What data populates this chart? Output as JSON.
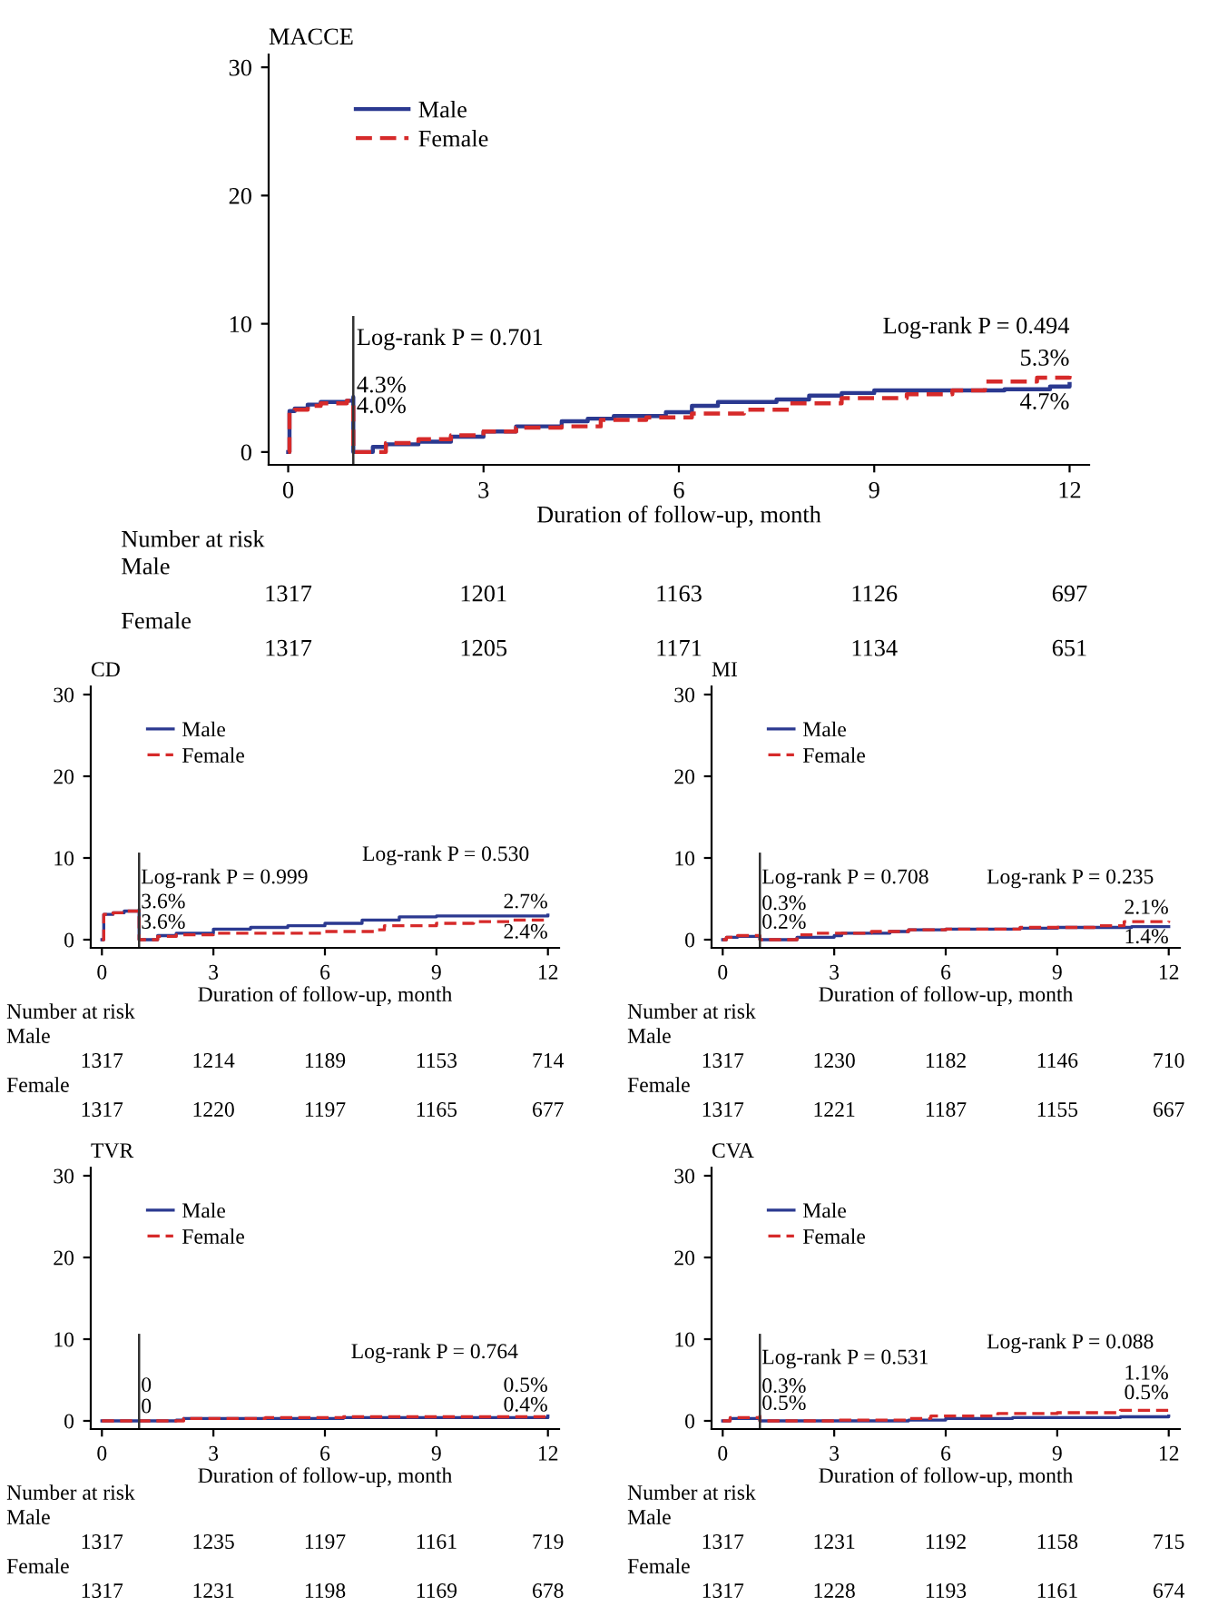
{
  "chart_data": [
    {
      "type": "step",
      "title": "MACCE",
      "xlabel": "Duration of follow-up, month",
      "xlim": [
        -0.3,
        12.3
      ],
      "ylim": [
        -1,
        31
      ],
      "xticks": [
        0,
        3,
        6,
        9,
        12
      ],
      "yticks": [
        0,
        10,
        20,
        30
      ],
      "legend": "top left",
      "grid": false,
      "series": [
        {
          "name": "Male",
          "color": "#2b3990",
          "line_style": "solid",
          "x": [
            0,
            0.02,
            0.1,
            0.3,
            0.5,
            0.9,
            1.0,
            1.0,
            1.3,
            1.5,
            2.0,
            2.5,
            3,
            3.5,
            4.2,
            4.6,
            5,
            5.8,
            6.2,
            6.6,
            7.5,
            8,
            8.5,
            9,
            10,
            11,
            11.7,
            12
          ],
          "values": [
            0,
            3.2,
            3.4,
            3.7,
            3.9,
            4.0,
            4.3,
            0,
            0.4,
            0.6,
            0.8,
            1.2,
            1.6,
            2.0,
            2.4,
            2.6,
            2.8,
            3.1,
            3.6,
            3.9,
            4.1,
            4.4,
            4.6,
            4.8,
            4.8,
            4.9,
            5.1,
            5.3
          ]
        },
        {
          "name": "Female",
          "color": "#d62a2a",
          "line_style": "dashed",
          "x": [
            0,
            0.02,
            0.1,
            0.3,
            0.5,
            0.9,
            1.0,
            1.0,
            1.5,
            2.0,
            2.5,
            3,
            3.5,
            4.2,
            4.8,
            5.5,
            6.2,
            7,
            7.7,
            8.5,
            9.5,
            10.2,
            10.7,
            11.5,
            12
          ],
          "values": [
            0,
            3.1,
            3.3,
            3.6,
            3.8,
            4.0,
            4.0,
            0,
            0.7,
            1.0,
            1.3,
            1.6,
            1.9,
            2.0,
            2.5,
            2.7,
            3.0,
            3.3,
            3.8,
            4.2,
            4.5,
            4.8,
            5.5,
            5.8,
            6.1
          ]
        }
      ],
      "ref_lines": [
        {
          "axis": "x",
          "value": 1,
          "color": "#333333"
        }
      ],
      "annotations": [
        "Log-rank P = 0.701",
        "4.3%",
        "4.0%",
        "Log-rank P = 0.494",
        "5.3%",
        "4.7%",
        "Number at risk",
        "Male",
        "1317",
        "1201",
        "1163",
        "1126",
        "697",
        "Female",
        "1317",
        "1205",
        "1171",
        "1134",
        "651"
      ]
    },
    {
      "type": "step",
      "title": "CD",
      "xlabel": "Duration of follow-up, month",
      "xlim": [
        -0.3,
        12.3
      ],
      "ylim": [
        -1,
        31
      ],
      "xticks": [
        0,
        3,
        6,
        9,
        12
      ],
      "yticks": [
        0,
        10,
        20,
        30
      ],
      "legend": "top left",
      "grid": false,
      "series": [
        {
          "name": "Male",
          "color": "#2b3990",
          "line_style": "solid",
          "x": [
            0,
            0.05,
            0.3,
            0.6,
            1.0,
            1.0,
            1.5,
            2,
            3,
            4,
            5,
            6,
            7,
            8,
            9,
            10,
            11,
            12
          ],
          "values": [
            0,
            3.1,
            3.3,
            3.5,
            3.7,
            0,
            0.5,
            0.8,
            1.3,
            1.5,
            1.7,
            2.0,
            2.4,
            2.8,
            2.9,
            2.9,
            2.9,
            3.0
          ]
        },
        {
          "name": "Female",
          "color": "#d62a2a",
          "line_style": "dashed",
          "x": [
            0,
            0.05,
            0.3,
            0.6,
            1.0,
            1.0,
            1.5,
            2,
            3,
            4,
            5,
            6,
            7.4,
            7.6,
            9,
            10,
            11,
            12
          ],
          "values": [
            0,
            3.1,
            3.3,
            3.5,
            3.6,
            0,
            0.4,
            0.6,
            0.8,
            0.8,
            0.8,
            1.0,
            1.2,
            1.7,
            2.0,
            2.2,
            2.4,
            2.6
          ]
        }
      ],
      "ref_lines": [
        {
          "axis": "x",
          "value": 1,
          "color": "#333333"
        }
      ],
      "annotations": [
        "Log-rank P = 0.999",
        "3.6%",
        "3.6%",
        "Log-rank P = 0.530",
        "2.7%",
        "2.4%",
        "Number at risk",
        "Male",
        "1317",
        "1214",
        "1189",
        "1153",
        "714",
        "Female",
        "1317",
        "1220",
        "1197",
        "1165",
        "677"
      ]
    },
    {
      "type": "step",
      "title": "MI",
      "xlabel": "Duration of follow-up, month",
      "xlim": [
        -0.3,
        12.3
      ],
      "ylim": [
        -1,
        31
      ],
      "xticks": [
        0,
        3,
        6,
        9,
        12
      ],
      "yticks": [
        0,
        10,
        20,
        30
      ],
      "legend": "top left",
      "grid": false,
      "series": [
        {
          "name": "Male",
          "color": "#2b3990",
          "line_style": "solid",
          "x": [
            0,
            0.1,
            0.4,
            1.0,
            1.0,
            2,
            3,
            3.2,
            4.5,
            5,
            6,
            8,
            9,
            11,
            12
          ],
          "values": [
            0,
            0.3,
            0.4,
            0.4,
            0,
            0.3,
            0.5,
            0.8,
            1.0,
            1.2,
            1.3,
            1.4,
            1.5,
            1.6,
            1.6
          ]
        },
        {
          "name": "Female",
          "color": "#d62a2a",
          "line_style": "dashed",
          "x": [
            0,
            0.1,
            0.4,
            1.0,
            1.0,
            2,
            2.5,
            4,
            5,
            6,
            8,
            10,
            10.8,
            12
          ],
          "values": [
            0,
            0.3,
            0.5,
            0.5,
            0,
            0.6,
            0.8,
            1.0,
            1.2,
            1.3,
            1.5,
            1.7,
            2.2,
            2.3
          ]
        }
      ],
      "ref_lines": [
        {
          "axis": "x",
          "value": 1,
          "color": "#333333"
        }
      ],
      "annotations": [
        "Log-rank P = 0.708",
        "0.3%",
        "0.2%",
        "Log-rank P = 0.235",
        "2.1%",
        "1.4%",
        "Number at risk",
        "Male",
        "1317",
        "1230",
        "1182",
        "1146",
        "710",
        "Female",
        "1317",
        "1221",
        "1187",
        "1155",
        "667"
      ]
    },
    {
      "type": "step",
      "title": "TVR",
      "xlabel": "Duration of follow-up, month",
      "xlim": [
        -0.3,
        12.3
      ],
      "ylim": [
        -1,
        31
      ],
      "xticks": [
        0,
        3,
        6,
        9,
        12
      ],
      "yticks": [
        0,
        10,
        20,
        30
      ],
      "legend": "top left",
      "grid": false,
      "series": [
        {
          "name": "Male",
          "color": "#2b3990",
          "line_style": "solid",
          "x": [
            0,
            2,
            2.2,
            6.5,
            12
          ],
          "values": [
            0,
            0.1,
            0.3,
            0.4,
            0.6
          ]
        },
        {
          "name": "Female",
          "color": "#d62a2a",
          "line_style": "dashed",
          "x": [
            0,
            2.2,
            4.4,
            6.5,
            12
          ],
          "values": [
            0,
            0.3,
            0.4,
            0.5,
            0.6
          ]
        }
      ],
      "ref_lines": [
        {
          "axis": "x",
          "value": 1,
          "color": "#333333"
        }
      ],
      "annotations": [
        "0",
        "0",
        "Log-rank P = 0.764",
        "0.5%",
        "0.4%",
        "Number at risk",
        "Male",
        "1317",
        "1235",
        "1197",
        "1161",
        "719",
        "Female",
        "1317",
        "1231",
        "1198",
        "1169",
        "678"
      ]
    },
    {
      "type": "step",
      "title": "CVA",
      "xlabel": "Duration of follow-up, month",
      "xlim": [
        -0.3,
        12.3
      ],
      "ylim": [
        -1,
        31
      ],
      "xticks": [
        0,
        3,
        6,
        9,
        12
      ],
      "yticks": [
        0,
        10,
        20,
        30
      ],
      "legend": "top left",
      "grid": false,
      "series": [
        {
          "name": "Male",
          "color": "#2b3990",
          "line_style": "solid",
          "x": [
            0,
            0.2,
            1.0,
            1.0,
            3,
            5,
            6,
            7.8,
            10.7,
            12
          ],
          "values": [
            0,
            0.3,
            0.4,
            0,
            0,
            0.1,
            0.3,
            0.4,
            0.5,
            0.6
          ]
        },
        {
          "name": "Female",
          "color": "#d62a2a",
          "line_style": "dashed",
          "x": [
            0,
            0.2,
            1.0,
            1.0,
            3,
            5,
            5.6,
            7.4,
            9,
            10.7,
            12
          ],
          "values": [
            0,
            0.4,
            0.6,
            0,
            0.1,
            0.3,
            0.6,
            0.9,
            1.0,
            1.3,
            1.3
          ]
        }
      ],
      "ref_lines": [
        {
          "axis": "x",
          "value": 1,
          "color": "#333333"
        }
      ],
      "annotations": [
        "Log-rank P = 0.531",
        "0.3%",
        "0.5%",
        "Log-rank P = 0.088",
        "1.1%",
        "0.5%",
        "Number at risk",
        "Male",
        "1317",
        "1231",
        "1192",
        "1158",
        "715",
        "Female",
        "1317",
        "1228",
        "1193",
        "1161",
        "674"
      ]
    }
  ]
}
